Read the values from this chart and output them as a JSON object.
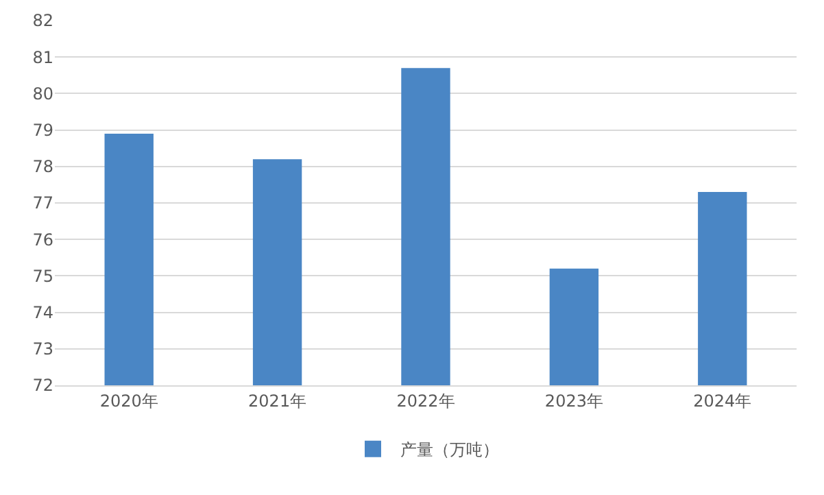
{
  "chart_data": {
    "type": "bar",
    "categories": [
      "2020年",
      "2021年",
      "2022年",
      "2023年",
      "2024年"
    ],
    "series": [
      {
        "name": "产量（万吨）",
        "color": "#4a86c5",
        "values": [
          78.9,
          78.2,
          80.7,
          75.2,
          77.3
        ]
      }
    ],
    "ylim": [
      72,
      82
    ],
    "yticks": [
      72,
      73,
      74,
      75,
      76,
      77,
      78,
      79,
      80,
      81,
      82
    ],
    "grid": "y",
    "legend": "bottom"
  }
}
